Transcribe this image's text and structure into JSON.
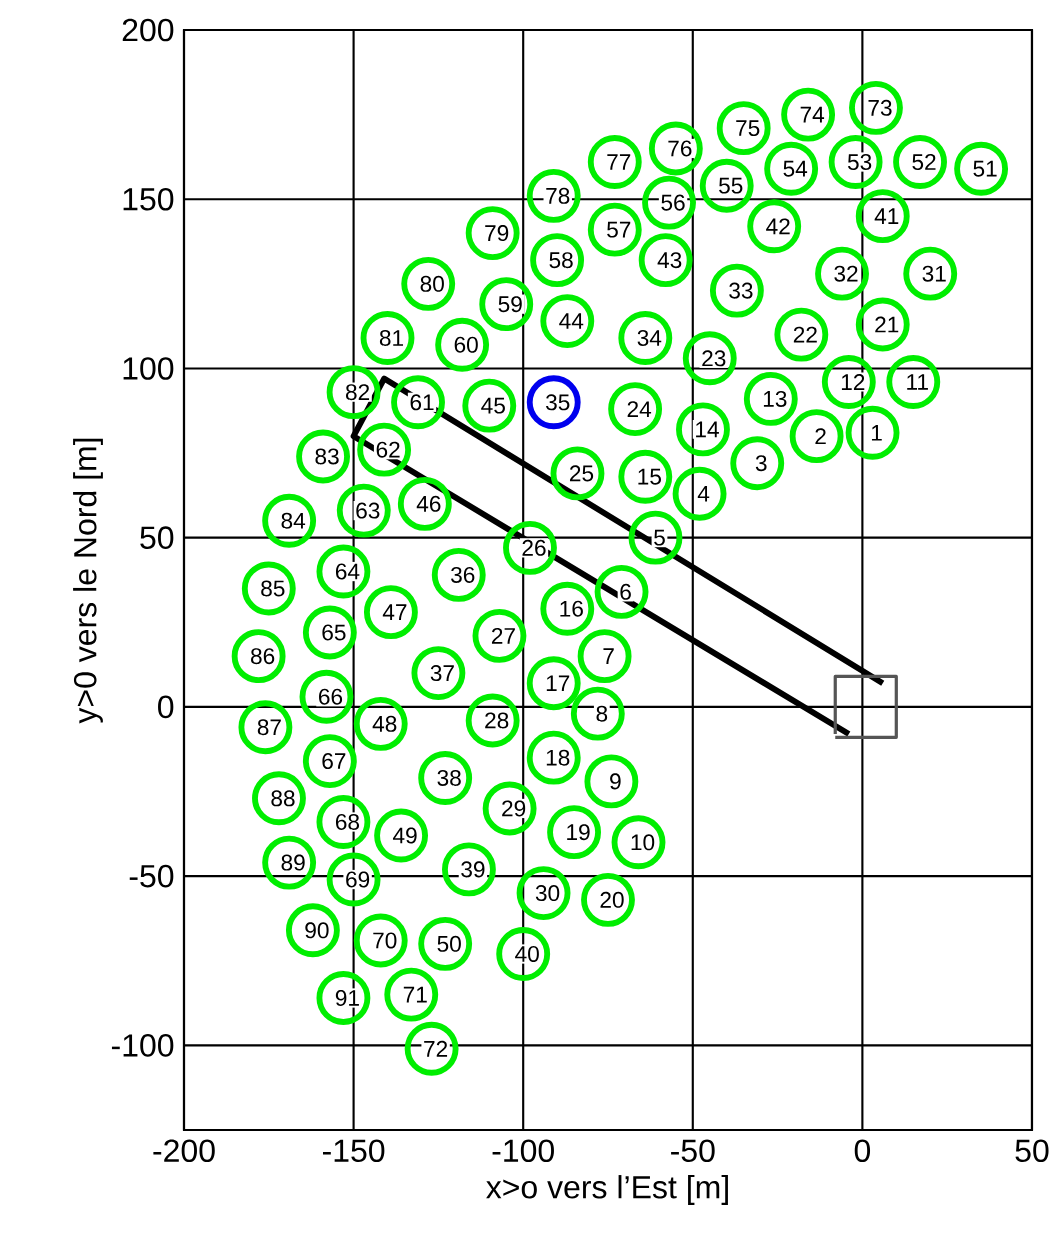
{
  "chart_data": {
    "type": "scatter",
    "xlabel": "x>o vers l’Est  [m]",
    "ylabel": "y>0 vers le Nord  [m]",
    "xlim": [
      -200,
      50
    ],
    "ylim": [
      -125,
      200
    ],
    "xticks": [
      -200,
      -150,
      -100,
      -50,
      0,
      50
    ],
    "yticks": [
      -100,
      -50,
      0,
      50,
      100,
      150,
      200
    ],
    "grid": true,
    "marker": "circle",
    "series": [
      {
        "color": "#00ee00",
        "x": [
          3,
          -13.5,
          -31,
          -48,
          -61,
          -71,
          -76,
          -78,
          -74,
          -66,
          15,
          -4,
          -27,
          -47,
          -64,
          -87,
          -91,
          -91,
          -85,
          -75,
          6,
          -18,
          -45,
          -67,
          -84,
          -98,
          -107,
          -109,
          -104,
          -94,
          20,
          -6,
          -37,
          -64,
          -91,
          -119,
          -125,
          -123,
          -116,
          -100,
          6,
          -26,
          -58,
          -87,
          -110,
          -129,
          -139,
          -142,
          -136,
          -123,
          35,
          17,
          -2,
          -21,
          -40,
          -57,
          -73,
          -90,
          -105,
          -118,
          -131,
          -141,
          -147,
          -153,
          -157,
          -158,
          -157,
          -153,
          -150,
          -142,
          -133,
          -127,
          4,
          -16,
          -35,
          -55,
          -73,
          -91,
          -109,
          -128,
          -140,
          -150,
          -159,
          -169,
          -175,
          -178,
          -176,
          -172,
          -169,
          -162,
          -153
        ],
        "values": [
          81,
          80,
          72,
          63,
          50,
          34,
          15,
          -2,
          -22,
          -40,
          96,
          96,
          91,
          82,
          68,
          29,
          7,
          -15,
          -37,
          -57,
          113,
          110,
          103,
          88,
          69,
          47,
          21,
          -4,
          -30,
          -55,
          128,
          128,
          123,
          109,
          90,
          39,
          10,
          -21,
          -48,
          -73,
          145,
          142,
          132,
          114,
          89,
          60,
          28,
          -5,
          -38,
          -70,
          159,
          161,
          161,
          159,
          154,
          149,
          141,
          132,
          119,
          107,
          90,
          76,
          58,
          40,
          22,
          3,
          -16,
          -34,
          -51,
          -69,
          -85,
          -101,
          177,
          175,
          171,
          165,
          161,
          151,
          140,
          125,
          109,
          93,
          74,
          55,
          35,
          15,
          -6,
          -27,
          -46,
          -66,
          -86
        ],
        "colors": [
          "#00ee00",
          "#00ee00",
          "#00ee00",
          "#00ee00",
          "#00ee00",
          "#00ee00",
          "#00ee00",
          "#00ee00",
          "#00ee00",
          "#00ee00",
          "#00ee00",
          "#00ee00",
          "#00ee00",
          "#00ee00",
          "#00ee00",
          "#00ee00",
          "#00ee00",
          "#00ee00",
          "#00ee00",
          "#00ee00",
          "#00ee00",
          "#00ee00",
          "#00ee00",
          "#00ee00",
          "#00ee00",
          "#00ee00",
          "#00ee00",
          "#00ee00",
          "#00ee00",
          "#00ee00",
          "#00ee00",
          "#00ee00",
          "#00ee00",
          "#00ee00",
          "#0000ee",
          "#00ee00",
          "#00ee00",
          "#00ee00",
          "#00ee00",
          "#00ee00",
          "#00ee00",
          "#00ee00",
          "#00ee00",
          "#00ee00",
          "#00ee00",
          "#00ee00",
          "#00ee00",
          "#00ee00",
          "#00ee00",
          "#00ee00",
          "#00ee00",
          "#00ee00",
          "#00ee00",
          "#00ee00",
          "#00ee00",
          "#00ee00",
          "#00ee00",
          "#00ee00",
          "#00ee00",
          "#00ee00",
          "#00ee00",
          "#00ee00",
          "#00ee00",
          "#00ee00",
          "#00ee00",
          "#00ee00",
          "#00ee00",
          "#00ee00",
          "#00ee00",
          "#00ee00",
          "#00ee00",
          "#00ee00",
          "#00ee00",
          "#00ee00",
          "#00ee00",
          "#00ee00",
          "#00ee00",
          "#00ee00",
          "#00ee00",
          "#00ee00",
          "#00ee00",
          "#00ee00",
          "#00ee00",
          "#00ee00",
          "#00ee00",
          "#00ee00",
          "#00ee00",
          "#00ee00",
          "#00ee00",
          "#00ee00",
          "#00ee00"
        ]
      },
      {
        "type": "line",
        "color": "#000000",
        "marker": "none",
        "x": [
          6,
          -141,
          -150,
          -4
        ],
        "values": [
          7,
          97,
          80,
          -8
        ]
      },
      {
        "type": "line",
        "color": "#555555",
        "marker": "none",
        "x": [
          -8,
          10,
          10,
          -8,
          -8
        ],
        "values": [
          -9,
          -9,
          9,
          9,
          -8
        ]
      }
    ],
    "annotations": [
      {
        "text": "1",
        "x": 3,
        "y": 81
      },
      {
        "text": "2",
        "x": -13.5,
        "y": 80
      },
      {
        "text": "3",
        "x": -31,
        "y": 72
      },
      {
        "text": "4",
        "x": -48,
        "y": 63
      },
      {
        "text": "5",
        "x": -61,
        "y": 50
      },
      {
        "text": "6",
        "x": -71,
        "y": 34
      },
      {
        "text": "7",
        "x": -76,
        "y": 15
      },
      {
        "text": "8",
        "x": -78,
        "y": -2
      },
      {
        "text": "9",
        "x": -74,
        "y": -22
      },
      {
        "text": "10",
        "x": -66,
        "y": -40
      },
      {
        "text": "11",
        "x": 15,
        "y": 96
      },
      {
        "text": "12",
        "x": -4,
        "y": 96
      },
      {
        "text": "13",
        "x": -27,
        "y": 91
      },
      {
        "text": "14",
        "x": -47,
        "y": 82
      },
      {
        "text": "15",
        "x": -64,
        "y": 68
      },
      {
        "text": "16",
        "x": -87,
        "y": 29
      },
      {
        "text": "17",
        "x": -91,
        "y": 7
      },
      {
        "text": "18",
        "x": -91,
        "y": -15
      },
      {
        "text": "19",
        "x": -85,
        "y": -37
      },
      {
        "text": "20",
        "x": -75,
        "y": -57
      },
      {
        "text": "21",
        "x": 6,
        "y": 113
      },
      {
        "text": "22",
        "x": -18,
        "y": 110
      },
      {
        "text": "23",
        "x": -45,
        "y": 103
      },
      {
        "text": "24",
        "x": -67,
        "y": 88
      },
      {
        "text": "25",
        "x": -84,
        "y": 69
      },
      {
        "text": "26",
        "x": -98,
        "y": 47
      },
      {
        "text": "27",
        "x": -107,
        "y": 21
      },
      {
        "text": "28",
        "x": -109,
        "y": -4
      },
      {
        "text": "29",
        "x": -104,
        "y": -30
      },
      {
        "text": "30",
        "x": -94,
        "y": -55
      },
      {
        "text": "31",
        "x": 20,
        "y": 128
      },
      {
        "text": "32",
        "x": -6,
        "y": 128
      },
      {
        "text": "33",
        "x": -37,
        "y": 123
      },
      {
        "text": "34",
        "x": -64,
        "y": 109
      },
      {
        "text": "35",
        "x": -91,
        "y": 90
      },
      {
        "text": "36",
        "x": -119,
        "y": 39
      },
      {
        "text": "37",
        "x": -125,
        "y": 10
      },
      {
        "text": "38",
        "x": -123,
        "y": -21
      },
      {
        "text": "39",
        "x": -116,
        "y": -48
      },
      {
        "text": "40",
        "x": -100,
        "y": -73
      },
      {
        "text": "41",
        "x": 6,
        "y": 145
      },
      {
        "text": "42",
        "x": -26,
        "y": 142
      },
      {
        "text": "43",
        "x": -58,
        "y": 132
      },
      {
        "text": "44",
        "x": -87,
        "y": 114
      },
      {
        "text": "45",
        "x": -110,
        "y": 89
      },
      {
        "text": "46",
        "x": -129,
        "y": 60
      },
      {
        "text": "47",
        "x": -139,
        "y": 28
      },
      {
        "text": "48",
        "x": -142,
        "y": -5
      },
      {
        "text": "49",
        "x": -136,
        "y": -38
      },
      {
        "text": "50",
        "x": -123,
        "y": -70
      },
      {
        "text": "51",
        "x": 35,
        "y": 159
      },
      {
        "text": "52",
        "x": 17,
        "y": 161
      },
      {
        "text": "53",
        "x": -2,
        "y": 161
      },
      {
        "text": "54",
        "x": -21,
        "y": 159
      },
      {
        "text": "55",
        "x": -40,
        "y": 154
      },
      {
        "text": "56",
        "x": -57,
        "y": 149
      },
      {
        "text": "57",
        "x": -73,
        "y": 141
      },
      {
        "text": "58",
        "x": -90,
        "y": 132
      },
      {
        "text": "59",
        "x": -105,
        "y": 119
      },
      {
        "text": "60",
        "x": -118,
        "y": 107
      },
      {
        "text": "61",
        "x": -131,
        "y": 90
      },
      {
        "text": "62",
        "x": -141,
        "y": 76
      },
      {
        "text": "63",
        "x": -147,
        "y": 58
      },
      {
        "text": "64",
        "x": -153,
        "y": 40
      },
      {
        "text": "65",
        "x": -157,
        "y": 22
      },
      {
        "text": "66",
        "x": -158,
        "y": 3
      },
      {
        "text": "67",
        "x": -157,
        "y": -16
      },
      {
        "text": "68",
        "x": -153,
        "y": -34
      },
      {
        "text": "69",
        "x": -150,
        "y": -51
      },
      {
        "text": "70",
        "x": -142,
        "y": -69
      },
      {
        "text": "71",
        "x": -133,
        "y": -85
      },
      {
        "text": "72",
        "x": -127,
        "y": -101
      },
      {
        "text": "73",
        "x": 4,
        "y": 177
      },
      {
        "text": "74",
        "x": -16,
        "y": 175
      },
      {
        "text": "75",
        "x": -35,
        "y": 171
      },
      {
        "text": "76",
        "x": -55,
        "y": 165
      },
      {
        "text": "77",
        "x": -73,
        "y": 161
      },
      {
        "text": "78",
        "x": -91,
        "y": 151
      },
      {
        "text": "79",
        "x": -109,
        "y": 140
      },
      {
        "text": "80",
        "x": -128,
        "y": 125
      },
      {
        "text": "81",
        "x": -140,
        "y": 109
      },
      {
        "text": "82",
        "x": -150,
        "y": 93
      },
      {
        "text": "83",
        "x": -159,
        "y": 74
      },
      {
        "text": "84",
        "x": -169,
        "y": 55
      },
      {
        "text": "85",
        "x": -175,
        "y": 35
      },
      {
        "text": "86",
        "x": -178,
        "y": 15
      },
      {
        "text": "87",
        "x": -176,
        "y": -6
      },
      {
        "text": "88",
        "x": -172,
        "y": -27
      },
      {
        "text": "89",
        "x": -169,
        "y": -46
      },
      {
        "text": "90",
        "x": -162,
        "y": -66
      },
      {
        "text": "91",
        "x": -153,
        "y": -86
      }
    ]
  }
}
